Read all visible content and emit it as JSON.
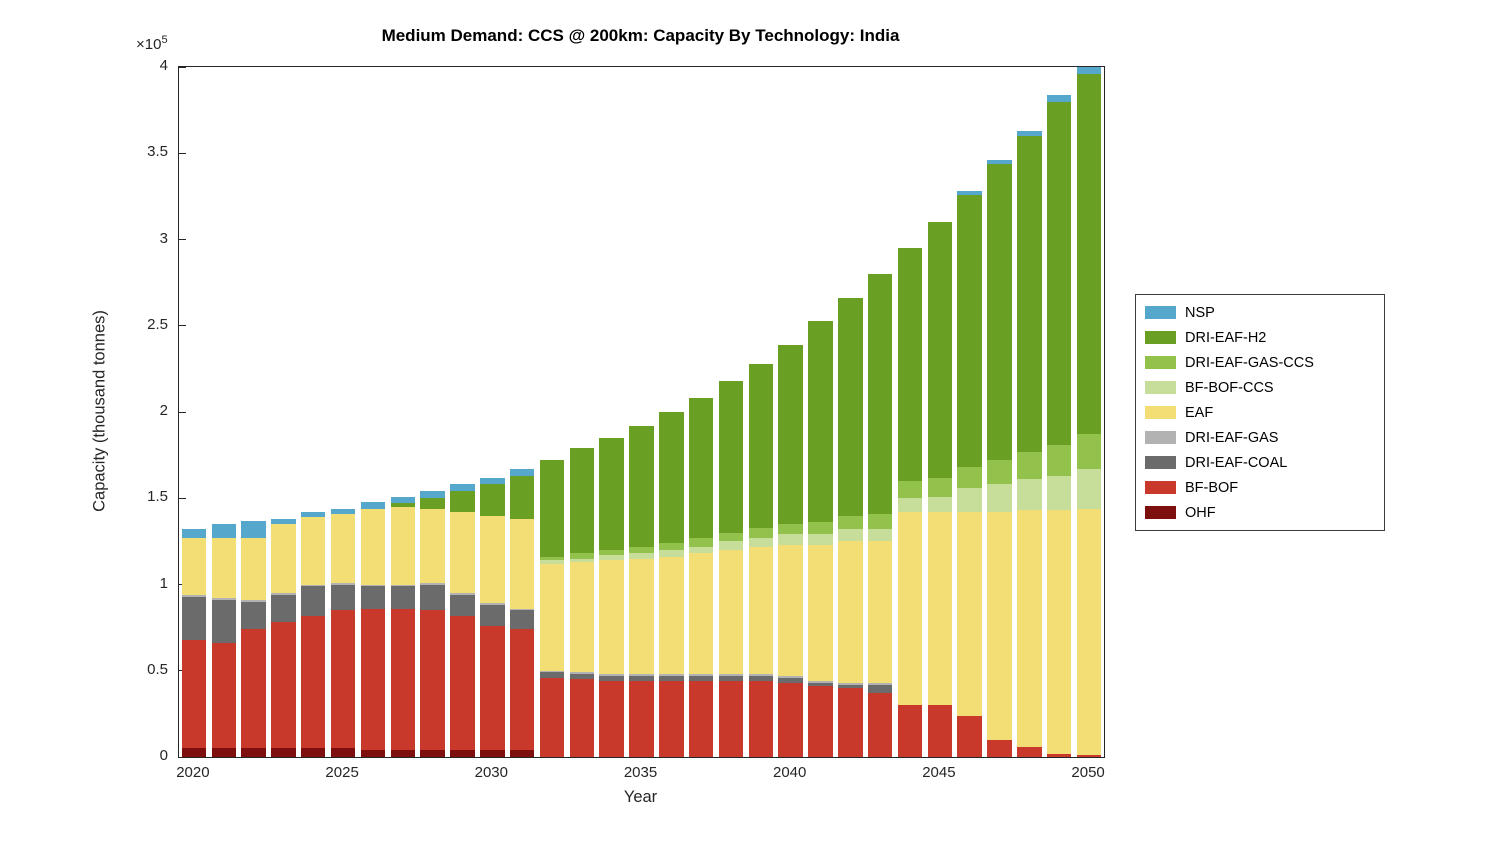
{
  "chart_data": {
    "type": "bar",
    "stacked": true,
    "title": "Medium Demand: CCS @ 200km: Capacity By Technology: India",
    "xlabel": "Year",
    "ylabel": "Capacity (thousand tonnes)",
    "y_exponent_base": "×10",
    "y_exponent_power": "5",
    "ylim": [
      0,
      4
    ],
    "yticks": [
      0,
      0.5,
      1,
      1.5,
      2,
      2.5,
      3,
      3.5,
      4
    ],
    "ytick_labels": [
      "0",
      "0.5",
      "1",
      "1.5",
      "2",
      "2.5",
      "3",
      "3.5",
      "4"
    ],
    "xticks": [
      2020,
      2025,
      2030,
      2035,
      2040,
      2045,
      2050
    ],
    "categories": [
      2020,
      2021,
      2022,
      2023,
      2024,
      2025,
      2026,
      2027,
      2028,
      2029,
      2030,
      2031,
      2032,
      2033,
      2034,
      2035,
      2036,
      2037,
      2038,
      2039,
      2040,
      2041,
      2042,
      2043,
      2044,
      2045,
      2046,
      2047,
      2048,
      2049,
      2050
    ],
    "values_scale": "x10^5",
    "grid": false,
    "series": [
      {
        "name": "OHF",
        "color": "#7d100e",
        "values": [
          0.05,
          0.05,
          0.05,
          0.05,
          0.05,
          0.05,
          0.04,
          0.04,
          0.04,
          0.04,
          0.04,
          0.04,
          0,
          0,
          0,
          0,
          0,
          0,
          0,
          0,
          0,
          0,
          0,
          0,
          0,
          0,
          0,
          0,
          0,
          0,
          0
        ]
      },
      {
        "name": "BF-BOF",
        "color": "#c8392b",
        "values": [
          0.63,
          0.61,
          0.69,
          0.73,
          0.77,
          0.8,
          0.82,
          0.82,
          0.81,
          0.78,
          0.72,
          0.7,
          0.46,
          0.45,
          0.44,
          0.44,
          0.44,
          0.44,
          0.44,
          0.44,
          0.43,
          0.41,
          0.4,
          0.37,
          0.3,
          0.3,
          0.24,
          0.1,
          0.06,
          0.02,
          0.01
        ]
      },
      {
        "name": "DRI-EAF-COAL",
        "color": "#6b6b6b",
        "values": [
          0.25,
          0.25,
          0.16,
          0.16,
          0.17,
          0.15,
          0.13,
          0.13,
          0.15,
          0.12,
          0.12,
          0.11,
          0.03,
          0.03,
          0.03,
          0.03,
          0.03,
          0.03,
          0.03,
          0.03,
          0.03,
          0.02,
          0.02,
          0.05,
          0,
          0,
          0,
          0,
          0,
          0,
          0
        ]
      },
      {
        "name": "DRI-EAF-GAS",
        "color": "#b2b2b2",
        "values": [
          0.01,
          0.01,
          0.01,
          0.01,
          0.01,
          0.01,
          0.01,
          0.01,
          0.01,
          0.01,
          0.01,
          0.01,
          0.01,
          0.01,
          0.01,
          0.01,
          0.01,
          0.01,
          0.01,
          0.01,
          0.01,
          0.01,
          0.01,
          0.01,
          0,
          0,
          0,
          0,
          0,
          0,
          0
        ]
      },
      {
        "name": "EAF",
        "color": "#f3dd75",
        "values": [
          0.33,
          0.35,
          0.36,
          0.4,
          0.39,
          0.4,
          0.44,
          0.45,
          0.43,
          0.47,
          0.51,
          0.52,
          0.62,
          0.64,
          0.66,
          0.67,
          0.68,
          0.7,
          0.72,
          0.74,
          0.76,
          0.79,
          0.82,
          0.82,
          1.12,
          1.12,
          1.18,
          1.32,
          1.37,
          1.41,
          1.43
        ]
      },
      {
        "name": "BF-BOF-CCS",
        "color": "#c7de9a",
        "values": [
          0,
          0,
          0,
          0,
          0,
          0,
          0,
          0,
          0,
          0,
          0,
          0,
          0.02,
          0.02,
          0.03,
          0.03,
          0.04,
          0.04,
          0.05,
          0.05,
          0.06,
          0.06,
          0.07,
          0.07,
          0.08,
          0.09,
          0.14,
          0.16,
          0.18,
          0.2,
          0.23
        ]
      },
      {
        "name": "DRI-EAF-GAS-CCS",
        "color": "#93c24c",
        "values": [
          0,
          0,
          0,
          0,
          0,
          0,
          0,
          0,
          0,
          0,
          0,
          0,
          0.02,
          0.03,
          0.03,
          0.04,
          0.04,
          0.05,
          0.05,
          0.06,
          0.06,
          0.07,
          0.08,
          0.09,
          0.1,
          0.11,
          0.12,
          0.14,
          0.16,
          0.18,
          0.2
        ]
      },
      {
        "name": "DRI-EAF-H2",
        "color": "#69a023",
        "values": [
          0,
          0,
          0,
          0,
          0,
          0,
          0,
          0.02,
          0.06,
          0.12,
          0.18,
          0.25,
          0.56,
          0.61,
          0.65,
          0.7,
          0.76,
          0.81,
          0.88,
          0.95,
          1.04,
          1.17,
          1.26,
          1.39,
          1.35,
          1.48,
          1.58,
          1.72,
          1.83,
          1.99,
          2.09
        ]
      },
      {
        "name": "NSP",
        "color": "#55a7cc",
        "values": [
          0.05,
          0.08,
          0.1,
          0.03,
          0.03,
          0.03,
          0.04,
          0.04,
          0.04,
          0.04,
          0.04,
          0.04,
          0,
          0,
          0,
          0,
          0,
          0,
          0,
          0,
          0,
          0,
          0,
          0,
          0,
          0,
          0.02,
          0.02,
          0.03,
          0.04,
          0.06
        ]
      }
    ],
    "legend": {
      "position": "right-outside",
      "entries_top_to_bottom": [
        "NSP",
        "DRI-EAF-H2",
        "DRI-EAF-GAS-CCS",
        "BF-BOF-CCS",
        "EAF",
        "DRI-EAF-GAS",
        "DRI-EAF-COAL",
        "BF-BOF",
        "OHF"
      ]
    }
  }
}
